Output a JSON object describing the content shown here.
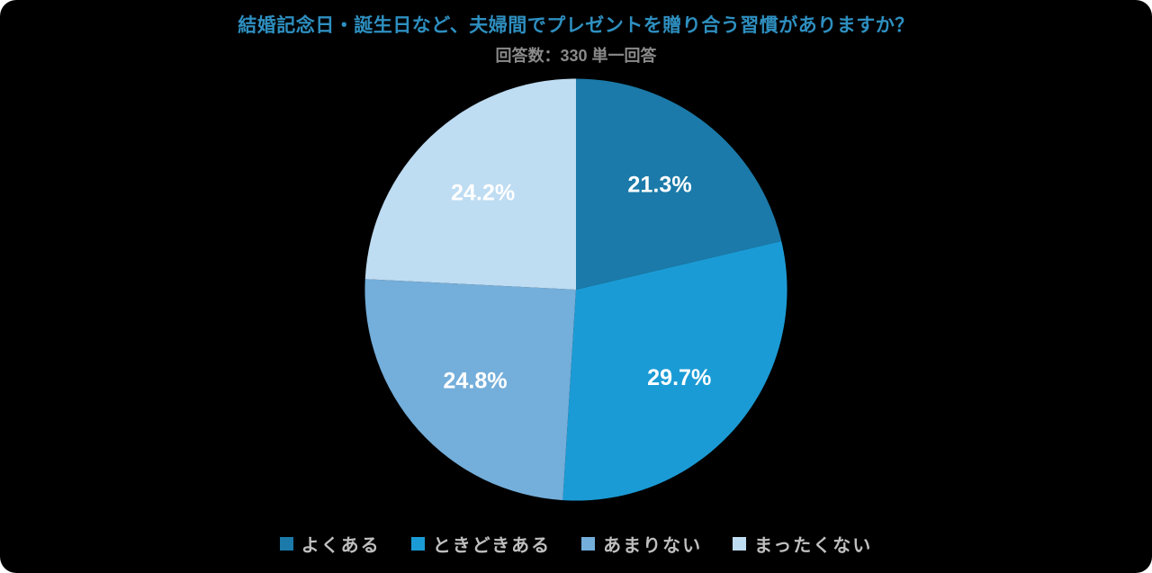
{
  "chart_data": {
    "type": "pie",
    "title": "結婚記念日・誕生日など、夫婦間でプレゼントを贈り合う習慣がありますか？",
    "subtitle": "回答数：330 単一回答",
    "labels": [
      "よくある",
      "ときどきある",
      "あまりない",
      "まったくない"
    ],
    "values": [
      21.3,
      29.7,
      24.8,
      24.2
    ],
    "value_labels": [
      "21.3%",
      "29.7%",
      "24.8%",
      "24.2%"
    ],
    "colors": [
      "#1b7aa9",
      "#1b9bd5",
      "#74aeda",
      "#bedcf2"
    ],
    "start_angle_deg": 0,
    "direction": "clockwise",
    "legend_position": "bottom",
    "title_color": "#2e8fc0",
    "subtitle_color": "#8a8a8a",
    "value_label_color": "#ffffff",
    "background": "#000000"
  }
}
